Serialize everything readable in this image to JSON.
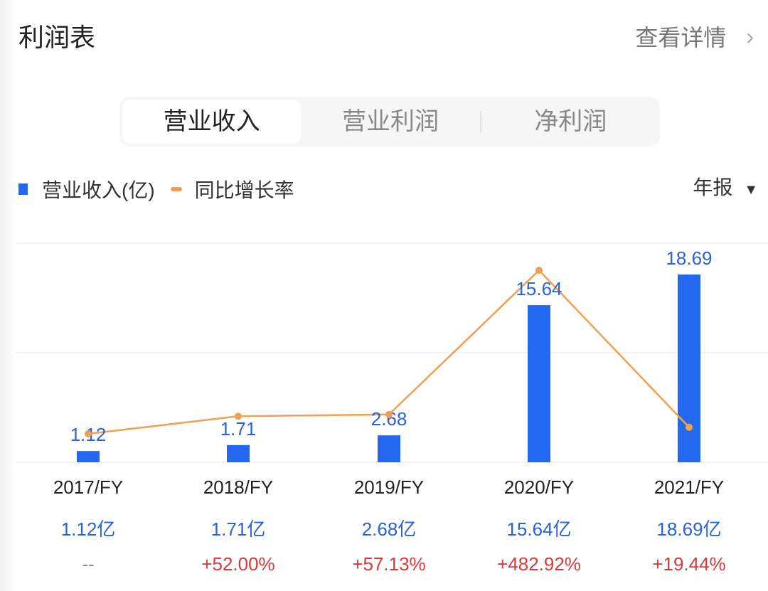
{
  "header": {
    "title": "利润表",
    "detail_label": "查看详情",
    "chevron": "chevron-right-icon"
  },
  "tabs": [
    {
      "label": "营业收入",
      "active": true
    },
    {
      "label": "营业利润",
      "active": false
    },
    {
      "label": "净利润",
      "active": false
    }
  ],
  "legend": {
    "bar_label": "营业收入(亿)",
    "line_label": "同比增长率"
  },
  "period": {
    "label": "年报",
    "icon": "caret-down-icon"
  },
  "colors": {
    "bar": "#2468f2",
    "line": "#f0a050",
    "value_text": "#2a62d8",
    "growth_text": "#d83a3a"
  },
  "chart_data": {
    "type": "bar",
    "categories": [
      "2017/FY",
      "2018/FY",
      "2019/FY",
      "2020/FY",
      "2021/FY"
    ],
    "series": [
      {
        "name": "营业收入(亿)",
        "type": "bar",
        "values": [
          1.12,
          1.71,
          2.68,
          15.64,
          18.69
        ],
        "labels": [
          "1.12",
          "1.71",
          "2.68",
          "15.64",
          "18.69"
        ]
      },
      {
        "name": "同比增长率",
        "type": "line",
        "values": [
          null,
          52.0,
          57.13,
          482.92,
          19.44
        ]
      }
    ],
    "value_row": [
      "1.12亿",
      "1.71亿",
      "2.68亿",
      "15.64亿",
      "18.69亿"
    ],
    "growth_row": [
      "--",
      "+52.00%",
      "+57.13%",
      "+482.92%",
      "+19.44%"
    ],
    "grid": true
  }
}
